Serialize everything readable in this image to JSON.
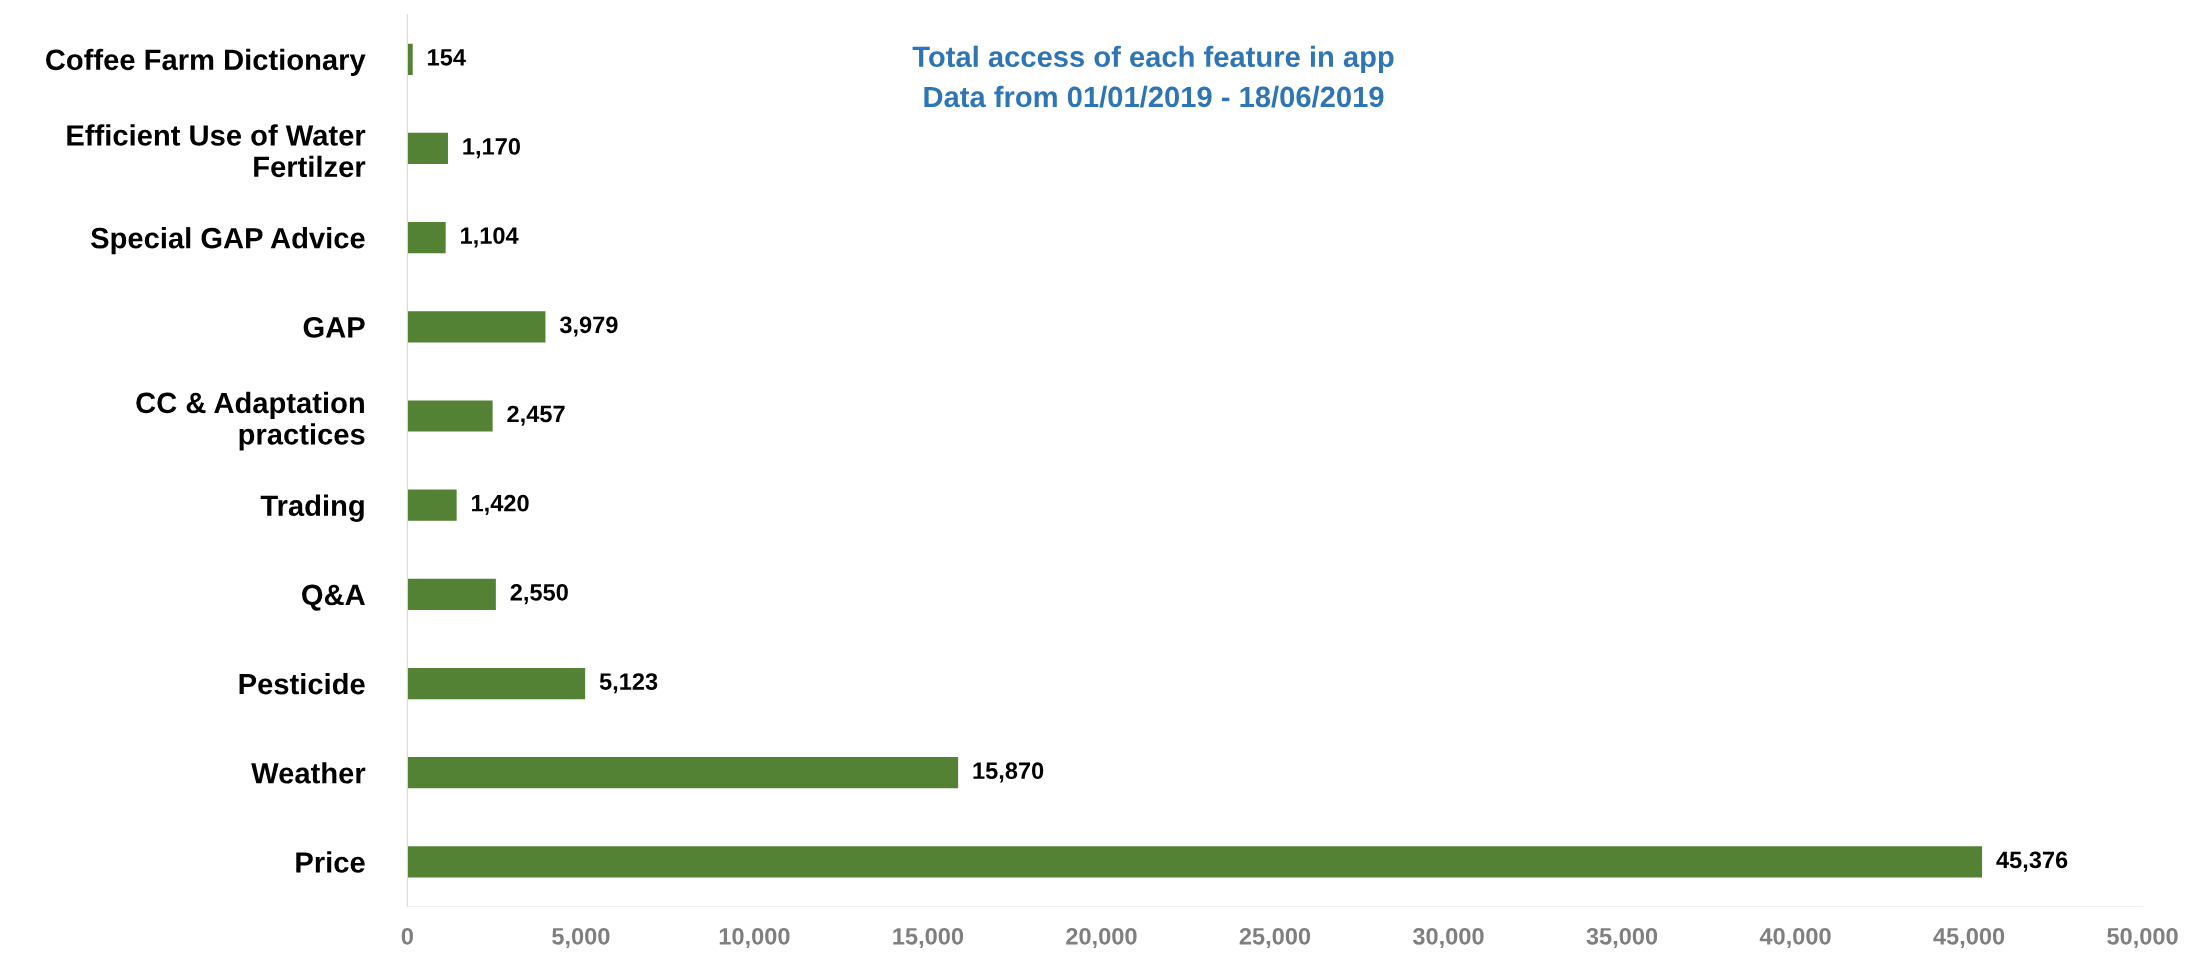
{
  "chart_data": {
    "type": "bar",
    "orientation": "horizontal",
    "title": "Total access of each feature in app",
    "subtitle": "Data from 01/01/2019 - 18/06/2019",
    "categories": [
      "Coffee Farm Dictionary",
      "Efficient Use of Water\nFertilzer",
      "Special GAP Advice",
      "GAP",
      "CC & Adaptation\npractices",
      "Trading",
      "Q&A",
      "Pesticide",
      "Weather",
      "Price"
    ],
    "values": [
      154,
      1170,
      1104,
      3979,
      2457,
      1420,
      2550,
      5123,
      15870,
      45376
    ],
    "color": "#548235",
    "value_labels": [
      "154",
      "1,170",
      "1,104",
      "3,979",
      "2,457",
      "1,420",
      "2,550",
      "5,123",
      "15,870",
      "45,376"
    ],
    "xlim": [
      0,
      50000
    ],
    "xticks": [
      0,
      {
        "value": 5000,
        "label": "5,000"
      },
      {
        "value": 10000,
        "label": "10,000"
      },
      {
        "value": 15000,
        "label": "15,000"
      },
      {
        "value": 20000,
        "label": "20,000"
      },
      {
        "value": 25000,
        "label": "25,000"
      },
      {
        "value": 30000,
        "label": "30,000"
      },
      {
        "value": 35000,
        "label": "35,000"
      },
      {
        "value": 40000,
        "label": "40,000"
      },
      {
        "value": 45000,
        "label": "45,000"
      },
      {
        "value": 50000,
        "label": "50,000"
      }
    ],
    "grid": false,
    "legend": false
  }
}
